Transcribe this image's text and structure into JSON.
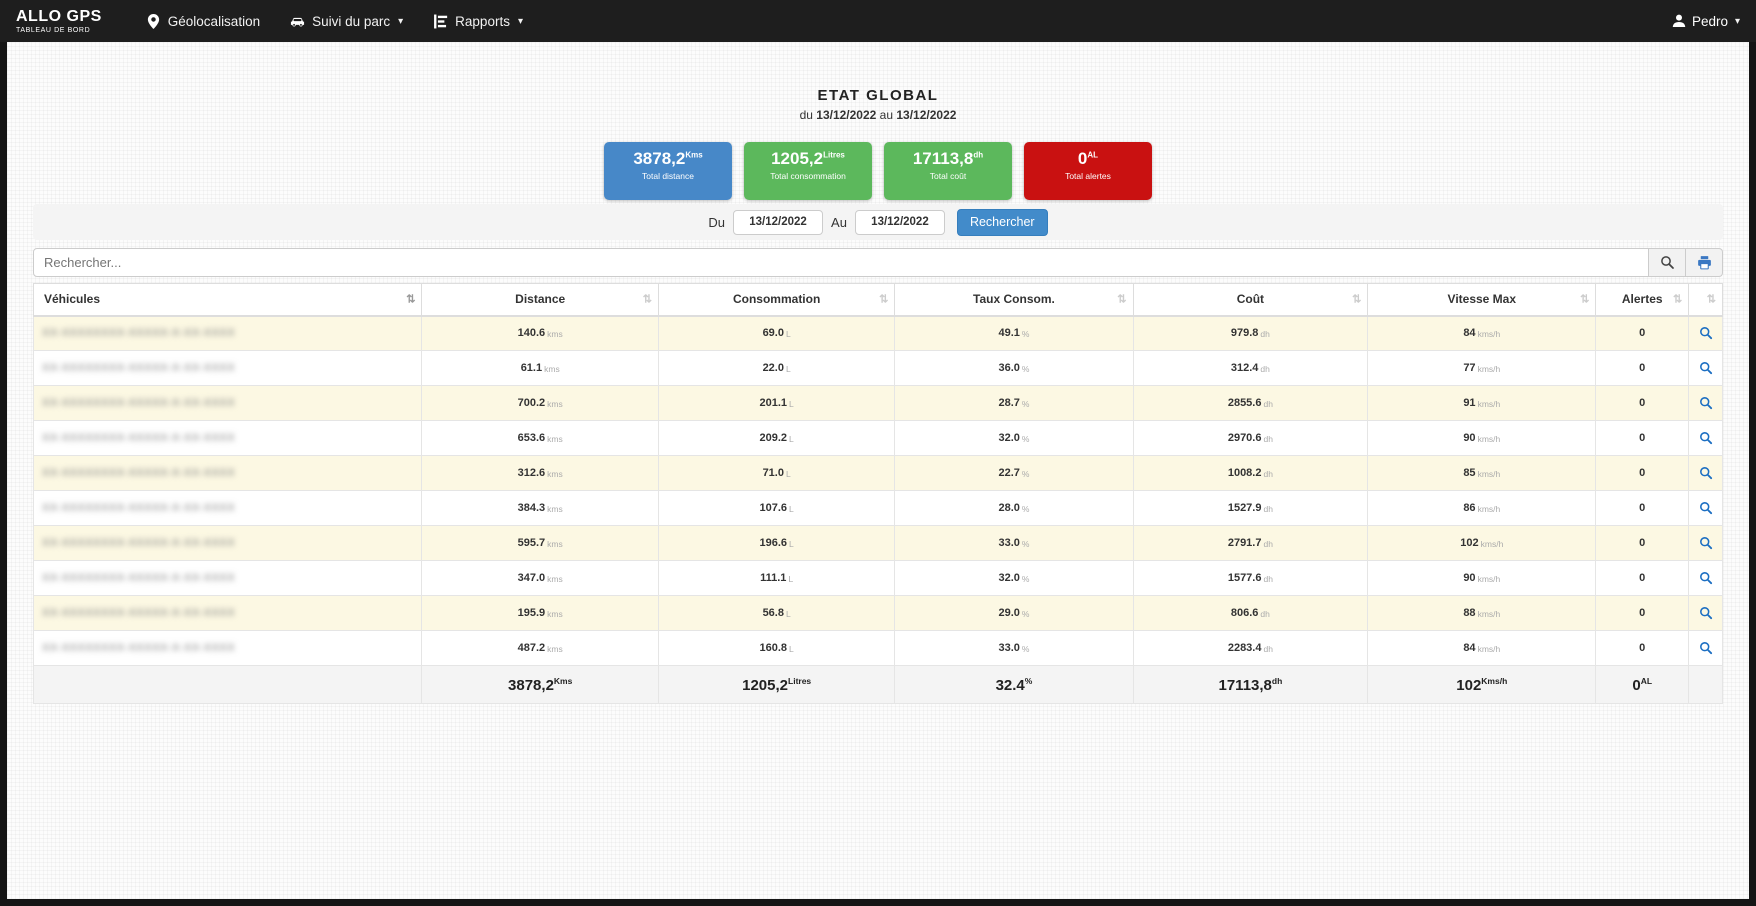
{
  "navbar": {
    "brand": "ALLO GPS",
    "brand_sub": "TABLEAU DE BORD",
    "items": [
      {
        "label": "Géolocalisation",
        "icon": "map-pin-icon",
        "caret": false
      },
      {
        "label": "Suivi du parc",
        "icon": "car-icon",
        "caret": true
      },
      {
        "label": "Rapports",
        "icon": "report-chart-icon",
        "caret": true
      }
    ],
    "user": "Pedro",
    "user_icon": "user-icon",
    "caret_glyph": "▾"
  },
  "header": {
    "title": "ETAT GLOBAL",
    "subtitle_prefix": "du",
    "date_from": "13/12/2022",
    "subtitle_middle": "au",
    "date_to": "13/12/2022"
  },
  "cards": [
    {
      "value": "3878,2",
      "unit": "Kms",
      "label": "Total distance",
      "color": "#4788c8"
    },
    {
      "value": "1205,2",
      "unit": "Litres",
      "label": "Total consommation",
      "color": "#5cb85c"
    },
    {
      "value": "17113,8",
      "unit": "dh",
      "label": "Total coût",
      "color": "#5cb85c"
    },
    {
      "value": "0",
      "unit": "AL",
      "label": "Total alertes",
      "color": "#c91111"
    }
  ],
  "filter": {
    "du_label": "Du",
    "au_label": "Au",
    "date_from": "13/12/2022",
    "date_to": "13/12/2022",
    "search_button": "Rechercher"
  },
  "search": {
    "placeholder": "Rechercher..."
  },
  "icons": {
    "sort_glyph": "⇅"
  },
  "colors": {
    "navbar_bg": "#1e1e1e",
    "button_blue": "#428bca",
    "row_stripe": "#fcf8e3",
    "magnifier_blue": "#1b6ec2",
    "printer_blue": "#3b78c3"
  },
  "table": {
    "columns": [
      "Véhicules",
      "Distance",
      "Consommation",
      "Taux Consom.",
      "Coût",
      "Vitesse Max",
      "Alertes"
    ],
    "units": {
      "distance": "kms",
      "consumption": "L",
      "rate": "%",
      "cost": "dh",
      "speed": "kms/h"
    },
    "vehicle_redacted": "XX-XXXXXXXX-XXXXX-X-XX-XXXX",
    "rows": [
      {
        "distance": "140.6",
        "consumption": "69.0",
        "rate": "49.1",
        "cost": "979.8",
        "speed": "84",
        "alerts": "0"
      },
      {
        "distance": "61.1",
        "consumption": "22.0",
        "rate": "36.0",
        "cost": "312.4",
        "speed": "77",
        "alerts": "0"
      },
      {
        "distance": "700.2",
        "consumption": "201.1",
        "rate": "28.7",
        "cost": "2855.6",
        "speed": "91",
        "alerts": "0"
      },
      {
        "distance": "653.6",
        "consumption": "209.2",
        "rate": "32.0",
        "cost": "2970.6",
        "speed": "90",
        "alerts": "0"
      },
      {
        "distance": "312.6",
        "consumption": "71.0",
        "rate": "22.7",
        "cost": "1008.2",
        "speed": "85",
        "alerts": "0"
      },
      {
        "distance": "384.3",
        "consumption": "107.6",
        "rate": "28.0",
        "cost": "1527.9",
        "speed": "86",
        "alerts": "0"
      },
      {
        "distance": "595.7",
        "consumption": "196.6",
        "rate": "33.0",
        "cost": "2791.7",
        "speed": "102",
        "alerts": "0"
      },
      {
        "distance": "347.0",
        "consumption": "111.1",
        "rate": "32.0",
        "cost": "1577.6",
        "speed": "90",
        "alerts": "0"
      },
      {
        "distance": "195.9",
        "consumption": "56.8",
        "rate": "29.0",
        "cost": "806.6",
        "speed": "88",
        "alerts": "0"
      },
      {
        "distance": "487.2",
        "consumption": "160.8",
        "rate": "33.0",
        "cost": "2283.4",
        "speed": "84",
        "alerts": "0"
      }
    ],
    "footer": {
      "distance": "3878,2",
      "distance_unit": "Kms",
      "consumption": "1205,2",
      "consumption_unit": "Litres",
      "rate": "32.4",
      "rate_unit": "%",
      "cost": "17113,8",
      "cost_unit": "dh",
      "speed": "102",
      "speed_unit": "Kms/h",
      "alerts": "0",
      "alerts_unit": "AL"
    }
  }
}
